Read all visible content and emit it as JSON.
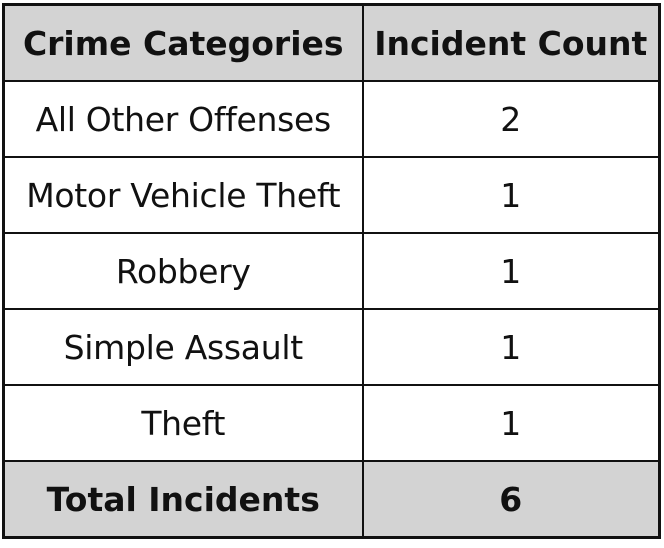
{
  "chart_data": {
    "type": "table",
    "columns": [
      "Crime Categories",
      "Incident Count"
    ],
    "rows": [
      {
        "category": "All Other Offenses",
        "count": "2"
      },
      {
        "category": "Motor Vehicle Theft",
        "count": "1"
      },
      {
        "category": "Robbery",
        "count": "1"
      },
      {
        "category": "Simple Assault",
        "count": "1"
      },
      {
        "category": "Theft",
        "count": "1"
      }
    ],
    "total": {
      "label": "Total Incidents",
      "count": "6"
    },
    "colors": {
      "header_bg": "#d3d3d3",
      "total_bg": "#d3d3d3",
      "border": "#111111",
      "text": "#111111"
    }
  }
}
